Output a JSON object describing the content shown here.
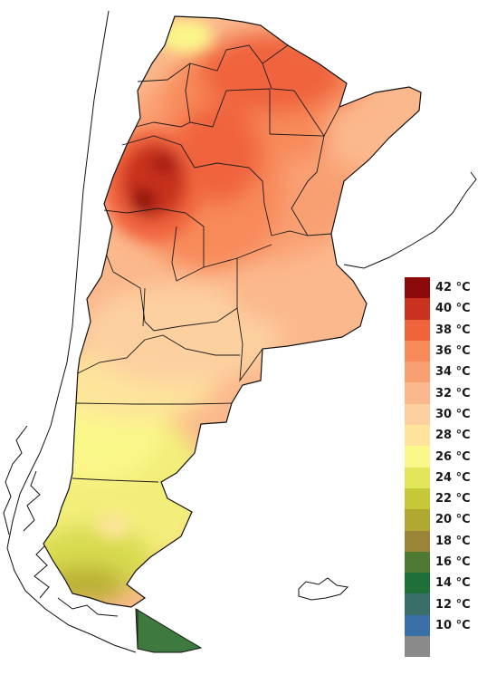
{
  "legend": {
    "items": [
      {
        "label": "42 °C",
        "color": "#8c0a0a"
      },
      {
        "label": "40 °C",
        "color": "#c8321e"
      },
      {
        "label": "38 °C",
        "color": "#f0643c"
      },
      {
        "label": "36 °C",
        "color": "#f88a5a"
      },
      {
        "label": "34 °C",
        "color": "#f9a073"
      },
      {
        "label": "32 °C",
        "color": "#fbb88c"
      },
      {
        "label": "30 °C",
        "color": "#fdd0a0"
      },
      {
        "label": "28 °C",
        "color": "#fde49a"
      },
      {
        "label": "26 °C",
        "color": "#fbf88a"
      },
      {
        "label": "24 °C",
        "color": "#e2e65a"
      },
      {
        "label": "22 °C",
        "color": "#c6c838"
      },
      {
        "label": "20 °C",
        "color": "#b0a830"
      },
      {
        "label": "18 °C",
        "color": "#9a8438"
      },
      {
        "label": "16 °C",
        "color": "#4e7a34"
      },
      {
        "label": "14 °C",
        "color": "#1e7038"
      },
      {
        "label": "12 °C",
        "color": "#3a6e68"
      },
      {
        "label": "10 °C",
        "color": "#3a70a8"
      },
      {
        "label": "",
        "color": "#8a8a8a"
      }
    ]
  }
}
